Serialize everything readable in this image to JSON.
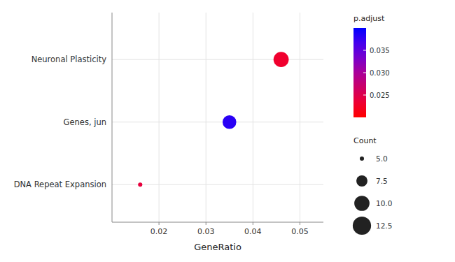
{
  "chart_data": {
    "type": "scatter",
    "xlabel": "GeneRatio",
    "categories": [
      "DNA Repeat Expansion",
      "Genes, jun",
      "Neuronal Plasticity"
    ],
    "points": {
      "x": [
        0.046,
        0.035,
        0.016
      ],
      "y": [
        "Neuronal Plasticity",
        "Genes, jun",
        "DNA Repeat Expansion"
      ],
      "count": [
        10,
        9,
        5
      ],
      "p_adjust": [
        0.023,
        0.038,
        0.024
      ]
    },
    "count_range": [
      5.0,
      12.5
    ],
    "xlim": [
      0.01,
      0.055
    ],
    "xticks": [
      0.02,
      0.03,
      0.04,
      0.05
    ],
    "grid": true,
    "colorbar": {
      "label": "p.adjust",
      "range": [
        0.02,
        0.04
      ],
      "ticks": [
        0.025,
        {
          "value": 0.03,
          "label": "0.030"
        },
        0.035
      ],
      "colors": [
        "#ff0000",
        "#ee0033",
        "#cc0066",
        "#aa0099",
        "#7700cc",
        "#4400ee",
        "#0000ff"
      ]
    },
    "size_legend": {
      "title": "Count",
      "values": [
        {
          "value": 5,
          "label": "5.0"
        },
        7.5,
        {
          "value": 10,
          "label": "10.0"
        },
        12.5
      ]
    }
  }
}
